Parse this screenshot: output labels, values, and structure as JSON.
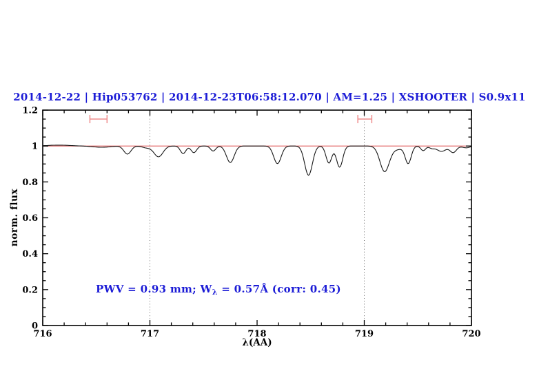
{
  "chart_data": {
    "type": "line",
    "title": "2014-12-22 | Hip053762 | 2014-12-23T06:58:12.070 | AM=1.25 | XSHOOTER | S0.9x11",
    "title_color": "#1c1cd6",
    "xlabel": "λ(AA)",
    "ylabel": "norm. flux",
    "xlim": [
      716,
      720
    ],
    "ylim": [
      0,
      1.2
    ],
    "x_ticks": {
      "values": [
        716,
        717,
        718,
        719,
        720
      ],
      "labels": [
        "716",
        "717",
        "718",
        "719",
        "720"
      ],
      "minor_step": 0.2
    },
    "y_ticks": {
      "values": [
        0,
        0.2,
        0.4,
        0.6,
        0.8,
        1.0,
        1.2
      ],
      "labels": [
        "0",
        "0.2",
        "0.4",
        "0.6",
        "0.8",
        "1",
        "1.2"
      ],
      "minor_step": 0.05
    },
    "grid": "off",
    "dotted_guides_x": [
      717,
      719
    ],
    "continuum": {
      "y": 1.0,
      "color": "#e06060"
    },
    "spectrum_color": "#151515",
    "marker_color": "#ef8e8e",
    "band_markers": [
      {
        "x_start": 716.44,
        "x_end": 716.6,
        "y": 1.15,
        "cap_half_height": 0.023
      },
      {
        "x_start": 718.94,
        "x_end": 719.07,
        "y": 1.15,
        "cap_half_height": 0.023
      }
    ],
    "absorption_features": [
      {
        "center": 716.15,
        "depth": -0.005,
        "sigma": 0.1
      },
      {
        "center": 716.55,
        "depth": 0.007,
        "sigma": 0.08
      },
      {
        "center": 716.79,
        "depth": 0.045,
        "sigma": 0.033
      },
      {
        "center": 716.97,
        "depth": 0.01,
        "sigma": 0.04
      },
      {
        "center": 717.08,
        "depth": 0.06,
        "sigma": 0.042
      },
      {
        "center": 717.31,
        "depth": 0.042,
        "sigma": 0.026
      },
      {
        "center": 717.41,
        "depth": 0.037,
        "sigma": 0.026
      },
      {
        "center": 717.59,
        "depth": 0.028,
        "sigma": 0.024
      },
      {
        "center": 717.75,
        "depth": 0.092,
        "sigma": 0.036
      },
      {
        "center": 718.19,
        "depth": 0.098,
        "sigma": 0.035
      },
      {
        "center": 718.48,
        "depth": 0.163,
        "sigma": 0.036
      },
      {
        "center": 718.67,
        "depth": 0.095,
        "sigma": 0.027
      },
      {
        "center": 718.77,
        "depth": 0.118,
        "sigma": 0.029
      },
      {
        "center": 719.19,
        "depth": 0.142,
        "sigma": 0.044
      },
      {
        "center": 719.31,
        "depth": 0.018,
        "sigma": 0.05
      },
      {
        "center": 719.41,
        "depth": 0.096,
        "sigma": 0.028
      },
      {
        "center": 719.55,
        "depth": 0.026,
        "sigma": 0.022
      },
      {
        "center": 719.63,
        "depth": 0.012,
        "sigma": 0.025
      },
      {
        "center": 719.72,
        "depth": 0.03,
        "sigma": 0.042
      },
      {
        "center": 719.83,
        "depth": 0.036,
        "sigma": 0.03
      },
      {
        "center": 719.95,
        "depth": 0.01,
        "sigma": 0.035
      }
    ],
    "key_minima": [
      {
        "wavelength": 716.79,
        "flux": 0.96
      },
      {
        "wavelength": 717.08,
        "flux": 0.94
      },
      {
        "wavelength": 717.75,
        "flux": 0.91
      },
      {
        "wavelength": 718.19,
        "flux": 0.9
      },
      {
        "wavelength": 718.48,
        "flux": 0.84
      },
      {
        "wavelength": 718.67,
        "flux": 0.9
      },
      {
        "wavelength": 718.77,
        "flux": 0.88
      },
      {
        "wavelength": 719.19,
        "flux": 0.86
      },
      {
        "wavelength": 719.41,
        "flux": 0.9
      }
    ],
    "annotation": {
      "prefix": "PWV = 0.93 mm; W",
      "subscript": "λ",
      "suffix": " = 0.57Å (corr: 0.45)",
      "color": "#1c1cd6"
    }
  }
}
